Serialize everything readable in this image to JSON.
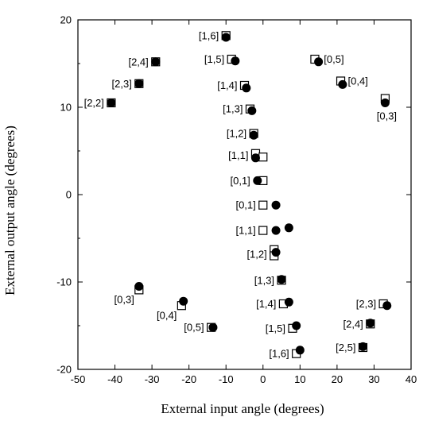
{
  "chart_data": {
    "type": "scatter",
    "title": "",
    "xlabel": "External input angle (degrees)",
    "ylabel": "External output angle (degrees)",
    "xlim": [
      -50,
      40
    ],
    "ylim": [
      -20,
      20
    ],
    "xticks": [
      "-50",
      "-40",
      "-30",
      "-20",
      "-10",
      "0",
      "10",
      "20",
      "30",
      "40"
    ],
    "yticks": [
      "-20",
      "-10",
      "0",
      "10",
      "20"
    ],
    "grid": false,
    "legend": "none",
    "series": [
      {
        "marker": "open-square",
        "points": [
          {
            "x": -10,
            "y": 18.2
          },
          {
            "x": -8.5,
            "y": 15.5
          },
          {
            "x": -5,
            "y": 12.5
          },
          {
            "x": -3.5,
            "y": 9.8
          },
          {
            "x": -2.5,
            "y": 7
          },
          {
            "x": -2,
            "y": 4.7
          },
          {
            "x": 0,
            "y": 4.3
          },
          {
            "x": 0,
            "y": 1.6
          },
          {
            "x": 0,
            "y": -1.2
          },
          {
            "x": 0,
            "y": -4.1
          },
          {
            "x": 3,
            "y": -6.3
          },
          {
            "x": 3,
            "y": -7
          },
          {
            "x": 5,
            "y": -9.8
          },
          {
            "x": 5.5,
            "y": -12.5
          },
          {
            "x": 8,
            "y": -15.3
          },
          {
            "x": 9,
            "y": -18.2
          },
          {
            "x": 14,
            "y": 15.5
          },
          {
            "x": 21,
            "y": 13
          },
          {
            "x": 33,
            "y": 11
          },
          {
            "x": -41,
            "y": 10.5
          },
          {
            "x": -33.5,
            "y": 12.7
          },
          {
            "x": -29,
            "y": 15.2
          },
          {
            "x": -33.5,
            "y": -10.9
          },
          {
            "x": -22,
            "y": -12.7
          },
          {
            "x": -14,
            "y": -15.2
          },
          {
            "x": 32.5,
            "y": -12.5
          },
          {
            "x": 29,
            "y": -14.8
          },
          {
            "x": 27,
            "y": -17.5
          }
        ]
      },
      {
        "marker": "filled-circle",
        "points": [
          {
            "x": -10,
            "y": 18
          },
          {
            "x": -7.5,
            "y": 15.3
          },
          {
            "x": -4.5,
            "y": 12.2
          },
          {
            "x": -3,
            "y": 9.6
          },
          {
            "x": -2.5,
            "y": 6.8
          },
          {
            "x": -2,
            "y": 4.2
          },
          {
            "x": -1.5,
            "y": 1.6
          },
          {
            "x": 3.5,
            "y": -1.2
          },
          {
            "x": 3.5,
            "y": -4.1
          },
          {
            "x": 7,
            "y": -3.8
          },
          {
            "x": 3.5,
            "y": -6.6
          },
          {
            "x": 5,
            "y": -9.7
          },
          {
            "x": 7,
            "y": -12.3
          },
          {
            "x": 9,
            "y": -15
          },
          {
            "x": 10,
            "y": -17.8
          },
          {
            "x": 15,
            "y": 15.2
          },
          {
            "x": 21.5,
            "y": 12.6
          },
          {
            "x": 33,
            "y": 10.5
          },
          {
            "x": -41,
            "y": 10.5
          },
          {
            "x": -33.5,
            "y": 12.7
          },
          {
            "x": -29,
            "y": 15.2
          },
          {
            "x": -33.5,
            "y": -10.5
          },
          {
            "x": -21.5,
            "y": -12.2
          },
          {
            "x": -13.5,
            "y": -15.2
          },
          {
            "x": 33.5,
            "y": -12.7
          },
          {
            "x": 29,
            "y": -14.7
          },
          {
            "x": 27,
            "y": -17.4
          }
        ]
      }
    ],
    "annotations": [
      {
        "text": "[1,6]",
        "x": -10,
        "y": 18.2,
        "pos": "left"
      },
      {
        "text": "[2,4]",
        "x": -29,
        "y": 15.2,
        "pos": "left"
      },
      {
        "text": "[1,5]",
        "x": -8.5,
        "y": 15.5,
        "pos": "left"
      },
      {
        "text": "[0,5]",
        "x": 14.5,
        "y": 15.5,
        "pos": "right"
      },
      {
        "text": "[2,3]",
        "x": -33.5,
        "y": 12.7,
        "pos": "left"
      },
      {
        "text": "[1,4]",
        "x": -5,
        "y": 12.5,
        "pos": "left"
      },
      {
        "text": "[0,4]",
        "x": 21,
        "y": 13,
        "pos": "right"
      },
      {
        "text": "[2,2]",
        "x": -41,
        "y": 10.5,
        "pos": "left"
      },
      {
        "text": "[0,3]",
        "x": 33,
        "y": 10.5,
        "pos": "below"
      },
      {
        "text": "[1,3]",
        "x": -3.5,
        "y": 9.8,
        "pos": "left"
      },
      {
        "text": "[1,2]",
        "x": -2.5,
        "y": 7,
        "pos": "left"
      },
      {
        "text": "[1,1]",
        "x": -2,
        "y": 4.5,
        "pos": "left"
      },
      {
        "text": "[0,1]",
        "x": -1.5,
        "y": 1.6,
        "pos": "left"
      },
      {
        "text": "[0,1]",
        "x": 0,
        "y": -1.2,
        "pos": "left"
      },
      {
        "text": "[1,1]",
        "x": 0,
        "y": -4.1,
        "pos": "left"
      },
      {
        "text": "[1,2]",
        "x": 3,
        "y": -6.8,
        "pos": "left"
      },
      {
        "text": "[1,3]",
        "x": 5,
        "y": -9.8,
        "pos": "left"
      },
      {
        "text": "[0,3]",
        "x": -33.5,
        "y": -10.7,
        "pos": "below-left"
      },
      {
        "text": "[1,4]",
        "x": 5.5,
        "y": -12.5,
        "pos": "left"
      },
      {
        "text": "[2,3]",
        "x": 32.5,
        "y": -12.5,
        "pos": "left"
      },
      {
        "text": "[0,4]",
        "x": -22,
        "y": -12.5,
        "pos": "below-left"
      },
      {
        "text": "[2,4]",
        "x": 29,
        "y": -14.8,
        "pos": "left"
      },
      {
        "text": "[1,5]",
        "x": 8,
        "y": -15.3,
        "pos": "left"
      },
      {
        "text": "[0,5]",
        "x": -14,
        "y": -15.2,
        "pos": "left"
      },
      {
        "text": "[2,5]",
        "x": 27,
        "y": -17.5,
        "pos": "left"
      },
      {
        "text": "[1,6]",
        "x": 9,
        "y": -18.2,
        "pos": "left"
      }
    ]
  }
}
